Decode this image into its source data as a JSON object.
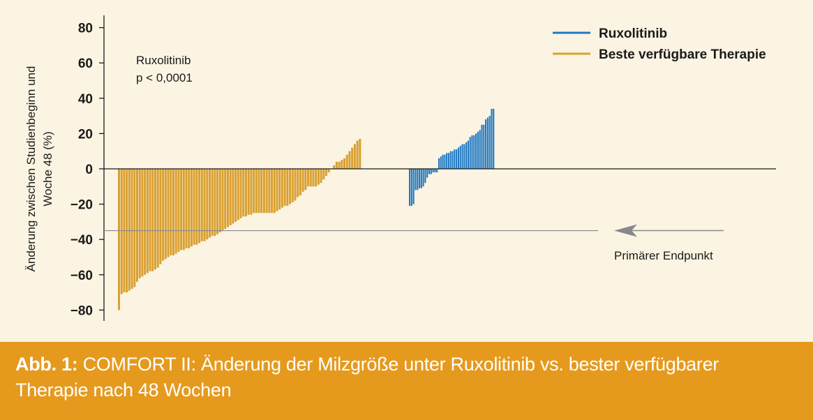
{
  "chart_data": {
    "type": "bar",
    "ylabel_line1": "Änderung zwischen Studienbeginn und",
    "ylabel_line2": "Woche 48 (%)",
    "ylim": [
      -85,
      85
    ],
    "yticks": [
      80,
      60,
      40,
      20,
      0,
      -20,
      -40,
      -60,
      -80
    ],
    "ytick_labels": [
      "80",
      "60",
      "40",
      "20",
      "0",
      "−20",
      "−40",
      "−60",
      "−80"
    ],
    "grid": false,
    "legend_position": "top-right",
    "annotation": {
      "line1": "Ruxolitinib",
      "line2": "p < 0,0001"
    },
    "reference_line": {
      "y": -35,
      "label": "Primärer Endpunkt"
    },
    "series": [
      {
        "name": "Beste verfügbare Therapie",
        "color": "#d9a031",
        "values": [
          -80,
          -71,
          -70,
          -70,
          -69,
          -68,
          -67,
          -64,
          -62,
          -61,
          -60,
          -59,
          -58,
          -58,
          -57,
          -56,
          -54,
          -52,
          -51,
          -50,
          -49,
          -49,
          -48,
          -47,
          -46,
          -46,
          -45,
          -45,
          -44,
          -43,
          -43,
          -42,
          -41,
          -41,
          -40,
          -39,
          -38,
          -38,
          -37,
          -36,
          -35,
          -34,
          -33,
          -32,
          -31,
          -30,
          -29,
          -28,
          -27,
          -27,
          -26,
          -26,
          -25,
          -25,
          -25,
          -25,
          -25,
          -25,
          -25,
          -25,
          -25,
          -24,
          -23,
          -22,
          -21,
          -21,
          -20,
          -19,
          -18,
          -16,
          -15,
          -13,
          -12,
          -10,
          -10,
          -10,
          -10,
          -9,
          -8,
          -6,
          -4,
          -2,
          0,
          2,
          4,
          4,
          5,
          6,
          8,
          10,
          12,
          14,
          16,
          17
        ]
      },
      {
        "name": "Ruxolitinib",
        "color": "#1f78c3",
        "values": [
          -21,
          -21,
          -20,
          -12,
          -12,
          -11,
          -11,
          -10,
          -8,
          -5,
          -3,
          -3,
          -2,
          -2,
          -2,
          6,
          7,
          8,
          8,
          9,
          9,
          10,
          10,
          11,
          11,
          12,
          13,
          14,
          14,
          15,
          16,
          18,
          19,
          19,
          20,
          21,
          22,
          25,
          25,
          28,
          29,
          30,
          34,
          34
        ]
      }
    ]
  },
  "caption": {
    "label": "Abb. 1:",
    "text": " COMFORT II: Änderung der Milzgröße unter Ruxolitinib vs. bester verfügbarer Therapie nach 48 Wochen"
  }
}
